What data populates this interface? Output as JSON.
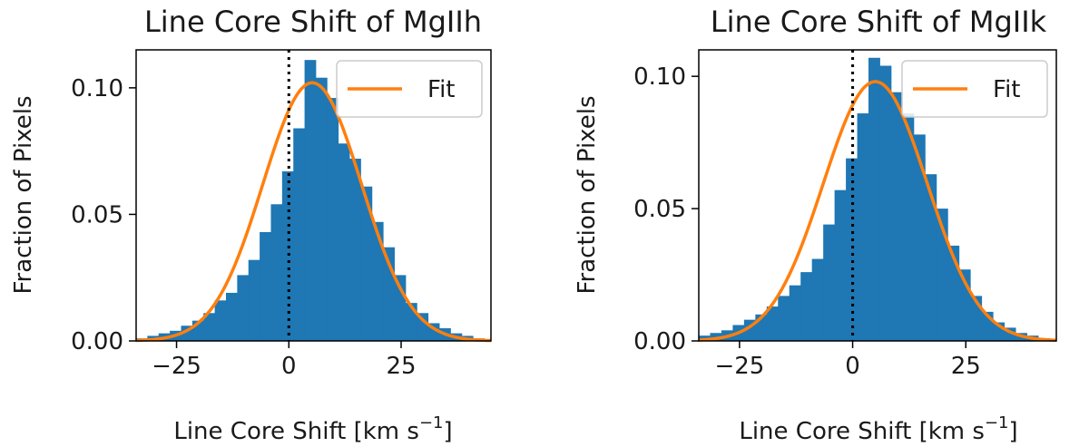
{
  "colors": {
    "bar": "#1f77b4",
    "fit": "#ff7f0e",
    "zero_line": "#000000"
  },
  "chart_data": [
    {
      "type": "bar",
      "title": "Line Core Shift of MgIIh",
      "xlabel": "Line Core Shift [km s",
      "xlabel_sup": "−1",
      "xlabel_end": "]",
      "ylabel": "Fraction of Pixels",
      "xlim": [
        -34,
        45
      ],
      "ylim": [
        0,
        0.115
      ],
      "xticks": [
        -25,
        0,
        25
      ],
      "xtick_labels": [
        "−25",
        "0",
        "25"
      ],
      "yticks": [
        0,
        0.05,
        0.1
      ],
      "ytick_labels": [
        "0.00",
        "0.05",
        "0.10"
      ],
      "legend": {
        "label": "Fit",
        "placement": "top-right"
      },
      "reference_line_x": 0,
      "bin_width": 2.5,
      "bin_starts": [
        -34,
        -31.5,
        -29,
        -26.5,
        -24,
        -21.5,
        -19,
        -16.5,
        -14,
        -11.5,
        -9,
        -6.5,
        -4,
        -1.5,
        1,
        3.5,
        6,
        8.5,
        11,
        13.5,
        16,
        18.5,
        21,
        23.5,
        26,
        28.5,
        31,
        33.5,
        36,
        38.5,
        41,
        43.5
      ],
      "values": [
        0.001,
        0.002,
        0.003,
        0.004,
        0.006,
        0.008,
        0.011,
        0.016,
        0.019,
        0.026,
        0.032,
        0.043,
        0.054,
        0.067,
        0.084,
        0.111,
        0.104,
        0.096,
        0.078,
        0.072,
        0.061,
        0.047,
        0.037,
        0.026,
        0.015,
        0.011,
        0.007,
        0.005,
        0.003,
        0.002,
        0.001,
        0.0005
      ],
      "fit": {
        "amplitude": 0.102,
        "mean": 5.2,
        "sigma": 11.0
      }
    },
    {
      "type": "bar",
      "title": "Line Core Shift of MgIIk",
      "xlabel": "Line Core Shift [km s",
      "xlabel_sup": "−1",
      "xlabel_end": "]",
      "ylabel": "Fraction of Pixels",
      "xlim": [
        -34,
        45
      ],
      "ylim": [
        0,
        0.11
      ],
      "xticks": [
        -25,
        0,
        25
      ],
      "xtick_labels": [
        "−25",
        "0",
        "25"
      ],
      "yticks": [
        0,
        0.05,
        0.1
      ],
      "ytick_labels": [
        "0.00",
        "0.05",
        "0.10"
      ],
      "legend": {
        "label": "Fit",
        "placement": "top-right"
      },
      "reference_line_x": 0,
      "bin_width": 2.5,
      "bin_starts": [
        -34,
        -31.5,
        -29,
        -26.5,
        -24,
        -21.5,
        -19,
        -16.5,
        -14,
        -11.5,
        -9,
        -6.5,
        -4,
        -1.5,
        1,
        3.5,
        6,
        8.5,
        11,
        13.5,
        16,
        18.5,
        21,
        23.5,
        26,
        28.5,
        31,
        33.5,
        36,
        38.5,
        41,
        43.5
      ],
      "values": [
        0.002,
        0.003,
        0.004,
        0.006,
        0.008,
        0.01,
        0.013,
        0.017,
        0.021,
        0.026,
        0.031,
        0.044,
        0.057,
        0.069,
        0.086,
        0.107,
        0.104,
        0.094,
        0.086,
        0.078,
        0.063,
        0.05,
        0.036,
        0.027,
        0.017,
        0.011,
        0.007,
        0.005,
        0.003,
        0.002,
        0.001,
        0.0005
      ],
      "fit": {
        "amplitude": 0.098,
        "mean": 5.0,
        "sigma": 11.5
      }
    }
  ]
}
